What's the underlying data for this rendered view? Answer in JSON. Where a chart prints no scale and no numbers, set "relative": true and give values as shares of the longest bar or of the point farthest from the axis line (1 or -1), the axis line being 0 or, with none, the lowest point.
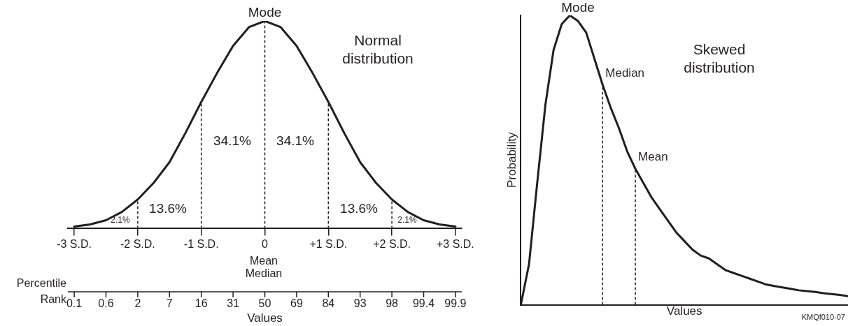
{
  "chart_data": [
    {
      "type": "line",
      "title": "Normal\ndistribution",
      "xlabel": "Values",
      "relative": true,
      "tick_labels": "x",
      "line_style": "solid",
      "marker": "none",
      "x": [
        -3,
        -2.75,
        -2.5,
        -2.25,
        -2,
        -1.75,
        -1.5,
        -1.25,
        -1,
        -0.75,
        -0.5,
        -0.25,
        0,
        0.25,
        0.5,
        0.75,
        1,
        1.25,
        1.5,
        1.75,
        2,
        2.25,
        2.5,
        2.75,
        3
      ],
      "series": [
        {
          "color": "#231f20",
          "values": [
            0.01,
            0.02,
            0.04,
            0.08,
            0.14,
            0.22,
            0.32,
            0.46,
            0.61,
            0.75,
            0.88,
            0.97,
            1,
            0.97,
            0.88,
            0.75,
            0.61,
            0.46,
            0.32,
            0.22,
            0.14,
            0.08,
            0.04,
            0.02,
            0.01
          ]
        }
      ],
      "xlim": [
        -3.1,
        3.1
      ],
      "xticks": [
        {
          "value": -3,
          "label": "-3 S.D."
        },
        {
          "value": -2,
          "label": "-2 S.D."
        },
        {
          "value": -1,
          "label": "-1 S.D."
        },
        0,
        {
          "value": 1,
          "label": "+1 S.D."
        },
        {
          "value": 2,
          "label": "+2 S.D."
        },
        {
          "value": 3,
          "label": "+3 S.D."
        }
      ],
      "ref_lines": [
        {
          "axis": "x",
          "value": -2,
          "line_style": "dashed"
        },
        {
          "axis": "x",
          "value": -1,
          "line_style": "dashed"
        },
        {
          "axis": "x",
          "value": 0,
          "line_style": "dashed"
        },
        {
          "axis": "x",
          "value": 1,
          "line_style": "dashed"
        },
        {
          "axis": "x",
          "value": 2,
          "line_style": "dashed"
        }
      ],
      "annotations": [
        {
          "text": "Mode",
          "x": 0,
          "y": 1
        },
        "34.1%",
        "34.1%",
        "13.6%",
        "13.6%",
        "2.1%",
        "2.1%",
        "Mean\nMedian",
        "Percentile\nRank",
        "0.1",
        "0.6",
        "2",
        "7",
        "16",
        "31",
        "50",
        "69",
        "84",
        "93",
        "98",
        "99.4",
        "99.9"
      ]
    },
    {
      "type": "line",
      "title": "Skewed\ndistribution",
      "xlabel": "Values",
      "ylabel": "Probability",
      "relative": true,
      "tick_labels": false,
      "line_style": "solid",
      "marker": "none",
      "categories": [
        null,
        null,
        null,
        null,
        null,
        null,
        null,
        null,
        null,
        null,
        null,
        null,
        null,
        null,
        null,
        null,
        null,
        null,
        null,
        null,
        null,
        null,
        null,
        null,
        null,
        null,
        null,
        null,
        null,
        null,
        null,
        null,
        null,
        null,
        null,
        null,
        null,
        null,
        null,
        null,
        null
      ],
      "series": [
        {
          "color": "#231f20",
          "values": [
            0,
            0.14,
            0.42,
            0.69,
            0.88,
            0.97,
            1,
            0.98,
            0.94,
            0.85,
            0.76,
            0.68,
            0.61,
            0.53,
            0.47,
            0.42,
            0.37,
            0.33,
            0.29,
            0.25,
            0.22,
            0.19,
            0.17,
            0.16,
            0.14,
            0.12,
            0.11,
            0.1,
            0.09,
            0.08,
            0.07,
            0.065,
            0.06,
            0.055,
            0.05,
            0.047,
            0.044,
            0.04,
            0.037,
            0.034,
            0.03
          ]
        }
      ],
      "annotations": [
        "Mode",
        "KMQf010-07",
        "Median",
        "Mean"
      ]
    }
  ]
}
